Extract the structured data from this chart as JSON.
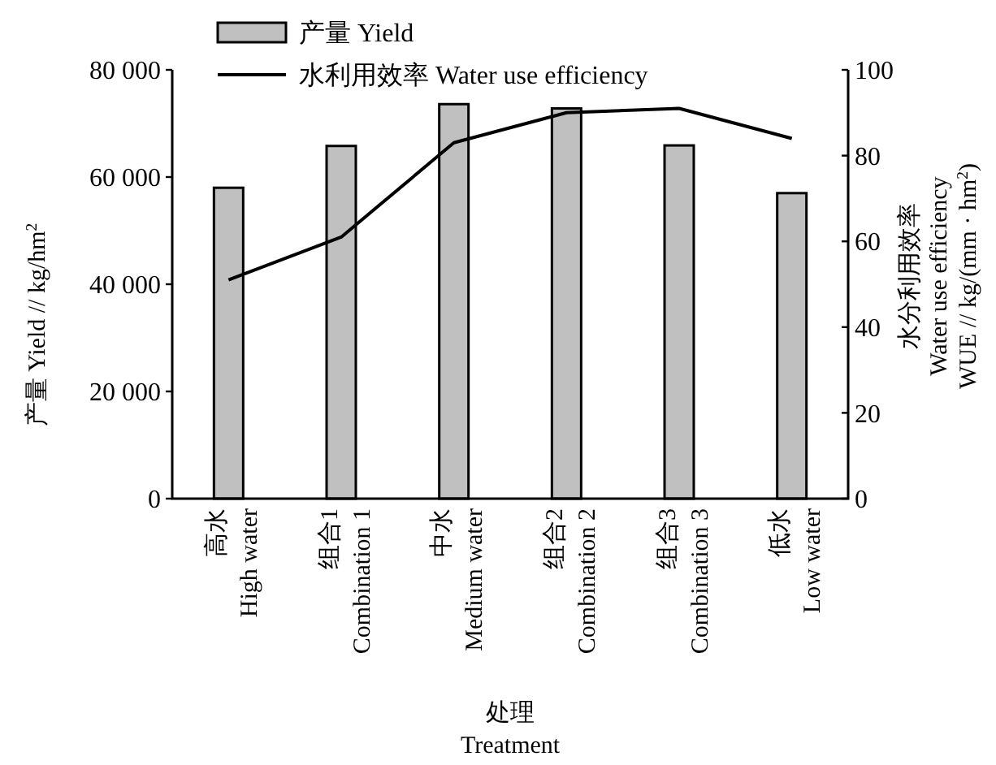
{
  "chart_data": {
    "type": "bar",
    "categories": [
      "高水\nHigh water",
      "组合1\nCombination 1",
      "中水\nMedium water",
      "组合2\nCombination 2",
      "组合3\nCombination 3",
      "低水\nLow water"
    ],
    "xlabel": "处理\nTreatment",
    "ylabel": "产量 Yield // kg/hm$^{2}$",
    "y2label": "水分利用效率\nWater use efficiency\nWUE // kg/(mm · hm$^{2}$)",
    "series": [
      {
        "name": "产量 Yield",
        "color": "#c0c0c0",
        "values": [
          58000,
          65800,
          73600,
          72800,
          65900,
          57000
        ]
      },
      {
        "name": "水利用效率 Water use efficiency",
        "type": "line",
        "axis": "y2",
        "color": "#000000",
        "values": [
          51,
          61,
          83,
          90,
          91,
          84
        ]
      }
    ],
    "ylim": [
      0,
      80000
    ],
    "yticks": [
      0,
      {
        "value": 20000,
        "label": "20 000"
      },
      {
        "value": 40000,
        "label": "40 000"
      },
      {
        "value": 60000,
        "label": "60 000"
      },
      {
        "value": 80000,
        "label": "80 000"
      }
    ],
    "y2lim": [
      0,
      100
    ],
    "y2ticks": [
      0,
      20,
      40,
      60,
      80,
      100
    ],
    "legend": "top left"
  }
}
